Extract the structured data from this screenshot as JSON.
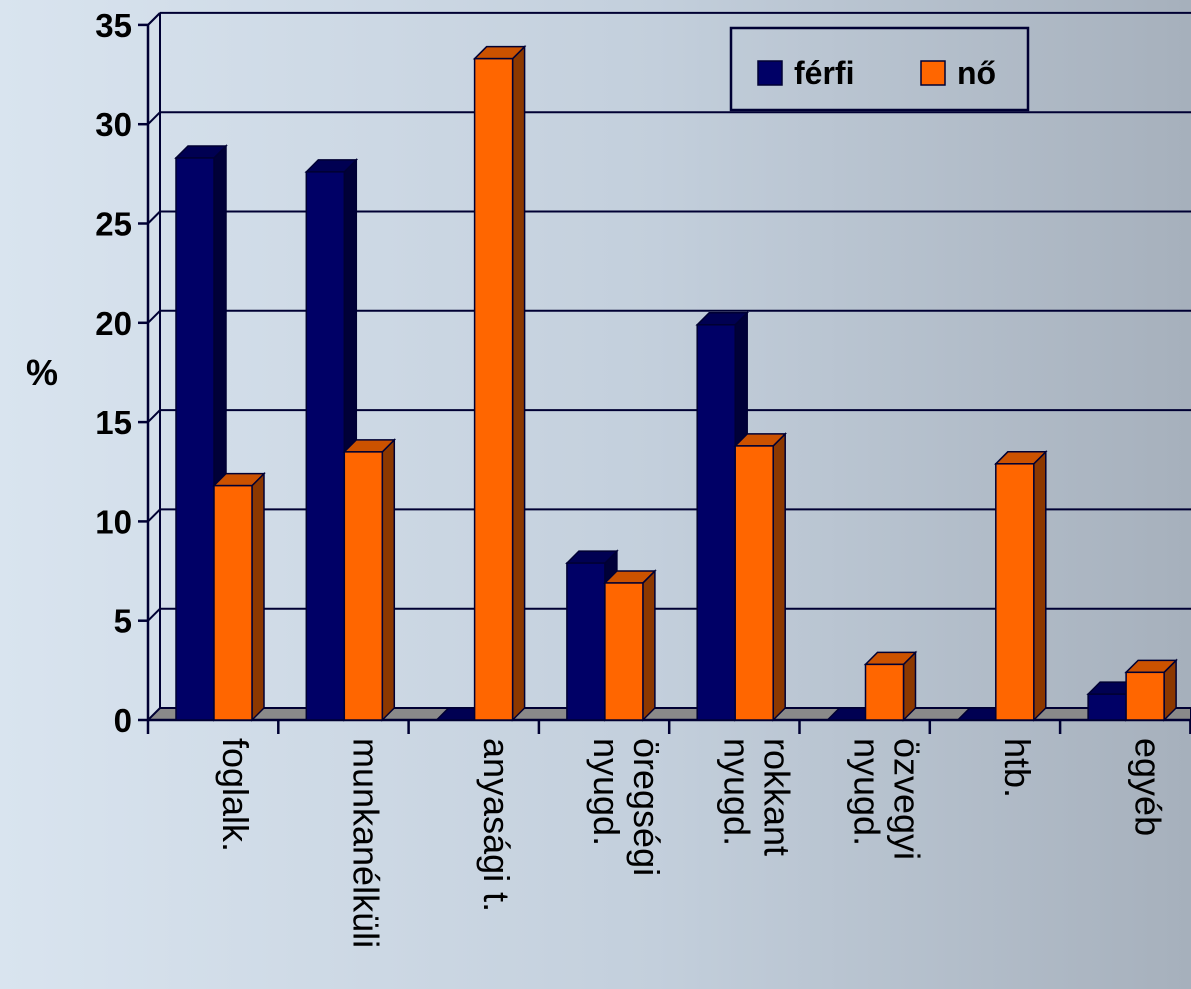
{
  "chart_data": {
    "type": "bar",
    "title": "",
    "xlabel": "",
    "ylabel": "%",
    "ylim": [
      0,
      35
    ],
    "yticks": [
      0,
      5,
      10,
      15,
      20,
      25,
      30,
      35
    ],
    "grid": true,
    "legend_position": "top-right",
    "categories": [
      [
        "foglalk."
      ],
      [
        "munkanélküli"
      ],
      [
        "anyasági t."
      ],
      [
        "öregségi",
        "nyugd."
      ],
      [
        "rokkant",
        "nyugd."
      ],
      [
        "özvegyi",
        "nyugd."
      ],
      [
        "htb."
      ],
      [
        "egyéb"
      ]
    ],
    "series": [
      {
        "name": "férfi",
        "color": "#000066",
        "values": [
          28.3,
          27.6,
          0,
          7.9,
          19.9,
          0,
          0,
          1.3
        ]
      },
      {
        "name": "nő",
        "color": "#ff6600",
        "values": [
          11.8,
          13.5,
          33.3,
          6.9,
          13.8,
          2.8,
          12.9,
          2.4
        ]
      }
    ]
  }
}
